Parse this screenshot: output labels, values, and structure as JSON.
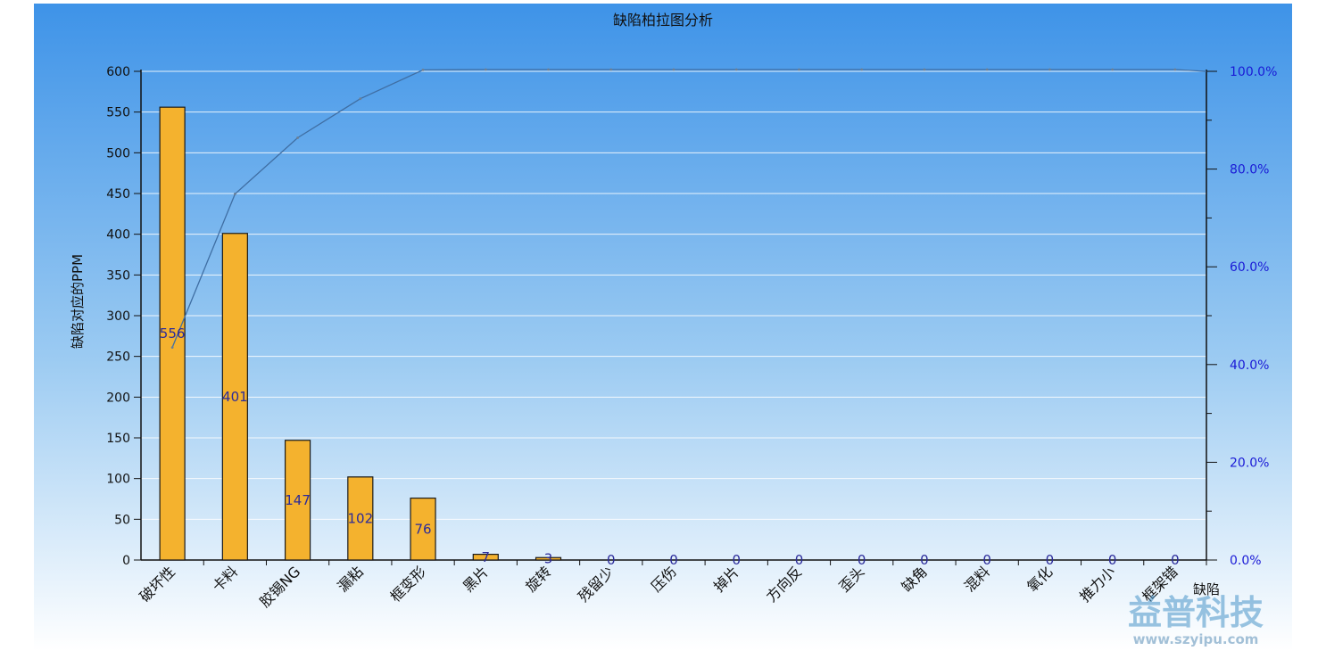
{
  "chart_data": {
    "type": "bar",
    "title": "缺陷柏拉图分析",
    "xlabel": "缺陷",
    "ylabel": "缺陷对应的PPM",
    "ylim": [
      0,
      600
    ],
    "y_ticks": [
      0,
      50,
      100,
      150,
      200,
      250,
      300,
      350,
      400,
      450,
      500,
      550,
      600
    ],
    "y2lim": [
      0,
      100
    ],
    "y2_ticks": [
      "0.0%",
      "20.0%",
      "40.0%",
      "60.0%",
      "80.0%",
      "100.0%"
    ],
    "categories": [
      "破坏性",
      "卡料",
      "胶锡NG",
      "漏粘",
      "框变形",
      "黑片",
      "旋转",
      "残留少",
      "压伤",
      "掉片",
      "方向反",
      "歪头",
      "缺角",
      "混料",
      "氧化",
      "推力小",
      "框架错"
    ],
    "series": [
      {
        "type": "bar",
        "values": [
          556,
          401,
          147,
          102,
          76,
          7,
          3,
          0,
          0,
          0,
          0,
          0,
          0,
          0,
          0,
          0,
          0
        ]
      },
      {
        "type": "line",
        "axis": "right",
        "values": [
          43.5,
          74.9,
          86.4,
          94.4,
          100.3,
          100.9,
          101.1,
          101.1,
          101.1,
          101.1,
          101.1,
          101.1,
          101.1,
          101.1,
          101.1,
          101.1,
          101.1
        ]
      }
    ],
    "grid": true,
    "colors": {
      "bar": "#f4b22e",
      "bar_stroke": "#1a1a1a",
      "line": "#3f6ea3",
      "data_label": "#2b2b9a",
      "right_axis_text": "#1a1ad6",
      "background_top": "#3e93e8",
      "background_bottom": "#ffffff"
    }
  },
  "watermark": {
    "logo_text": "益普科技",
    "url": "www.szyipu.com"
  }
}
